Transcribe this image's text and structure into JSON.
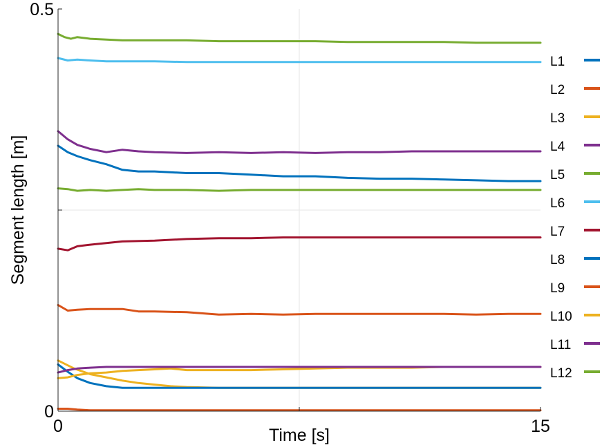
{
  "chart_data": {
    "type": "line",
    "xlabel": "Time [s]",
    "ylabel": "Segment length [m]",
    "xlim": [
      0,
      15
    ],
    "ylim": [
      0,
      0.5
    ],
    "xticks": [
      {
        "value": 0,
        "label": "0"
      },
      {
        "value": 7.5,
        "label": ""
      },
      {
        "value": 15,
        "label": "15"
      }
    ],
    "yticks": [
      {
        "value": 0,
        "label": "0"
      },
      {
        "value": 0.25,
        "label": ""
      },
      {
        "value": 0.5,
        "label": "0.5"
      }
    ],
    "grid": true,
    "legend_position": "right",
    "series": [
      {
        "name": "L1",
        "color": "#0072BD",
        "x": [
          0,
          0.3,
          0.6,
          1,
          1.5,
          2,
          2.5,
          3,
          4,
          5,
          6,
          7,
          8,
          9,
          10,
          11,
          12,
          13,
          14,
          15
        ],
        "y": [
          0.33,
          0.322,
          0.317,
          0.312,
          0.307,
          0.3,
          0.298,
          0.298,
          0.296,
          0.296,
          0.294,
          0.292,
          0.292,
          0.29,
          0.289,
          0.289,
          0.288,
          0.287,
          0.286,
          0.286
        ]
      },
      {
        "name": "L2",
        "color": "#D95319",
        "x": [
          0,
          0.3,
          0.6,
          1,
          2,
          4,
          6,
          8,
          10,
          12,
          15
        ],
        "y": [
          0.003,
          0.003,
          0.002,
          0.001,
          0.001,
          0.001,
          0.001,
          0.001,
          0.001,
          0.001,
          0.001
        ]
      },
      {
        "name": "L3",
        "color": "#EDB120",
        "x": [
          0,
          0.5,
          1,
          1.5,
          2,
          2.5,
          3,
          3.5,
          4,
          5,
          6,
          8,
          10,
          12,
          15
        ],
        "y": [
          0.063,
          0.053,
          0.046,
          0.042,
          0.038,
          0.035,
          0.033,
          0.031,
          0.03,
          0.029,
          0.029,
          0.029,
          0.029,
          0.029,
          0.029
        ]
      },
      {
        "name": "L4",
        "color": "#7E2F8E",
        "x": [
          0,
          0.3,
          0.6,
          1,
          1.5,
          2,
          2.5,
          3,
          4,
          5,
          6,
          7,
          8,
          9,
          10,
          11,
          12,
          13,
          14,
          15
        ],
        "y": [
          0.348,
          0.338,
          0.331,
          0.326,
          0.322,
          0.325,
          0.323,
          0.322,
          0.321,
          0.322,
          0.321,
          0.322,
          0.321,
          0.322,
          0.322,
          0.323,
          0.323,
          0.323,
          0.323,
          0.323
        ]
      },
      {
        "name": "L5",
        "color": "#77AC30",
        "x": [
          0,
          0.3,
          0.6,
          1,
          1.5,
          2,
          2.5,
          3,
          4,
          5,
          6,
          8,
          10,
          12,
          15
        ],
        "y": [
          0.277,
          0.276,
          0.274,
          0.275,
          0.274,
          0.275,
          0.276,
          0.275,
          0.275,
          0.274,
          0.275,
          0.275,
          0.275,
          0.275,
          0.275
        ]
      },
      {
        "name": "L6",
        "color": "#4DBEEE",
        "x": [
          0,
          0.3,
          0.6,
          1,
          1.5,
          2,
          3,
          4,
          5,
          6,
          8,
          10,
          12,
          15
        ],
        "y": [
          0.439,
          0.436,
          0.437,
          0.436,
          0.435,
          0.435,
          0.435,
          0.434,
          0.434,
          0.434,
          0.434,
          0.434,
          0.434,
          0.434
        ]
      },
      {
        "name": "L7",
        "color": "#A2142F",
        "x": [
          0,
          0.3,
          0.6,
          1,
          1.5,
          2,
          3,
          4,
          5,
          6,
          7,
          8,
          9,
          10,
          11,
          12,
          13,
          14,
          15
        ],
        "y": [
          0.202,
          0.2,
          0.205,
          0.207,
          0.209,
          0.211,
          0.212,
          0.214,
          0.215,
          0.215,
          0.216,
          0.216,
          0.216,
          0.216,
          0.216,
          0.216,
          0.216,
          0.216,
          0.216
        ]
      },
      {
        "name": "L8",
        "color": "#0072BD",
        "x": [
          0,
          0.3,
          0.6,
          1,
          1.5,
          2,
          3,
          4,
          5,
          6,
          8,
          10,
          12,
          15
        ],
        "y": [
          0.058,
          0.049,
          0.041,
          0.035,
          0.031,
          0.029,
          0.029,
          0.029,
          0.029,
          0.029,
          0.029,
          0.029,
          0.029,
          0.029
        ]
      },
      {
        "name": "L9",
        "color": "#D95319",
        "x": [
          0,
          0.3,
          0.6,
          1,
          1.5,
          2,
          2.5,
          3,
          4,
          5,
          6,
          7,
          8,
          9,
          10,
          11,
          12,
          13,
          14,
          15
        ],
        "y": [
          0.132,
          0.125,
          0.126,
          0.127,
          0.127,
          0.127,
          0.124,
          0.124,
          0.123,
          0.12,
          0.121,
          0.12,
          0.121,
          0.121,
          0.121,
          0.121,
          0.121,
          0.12,
          0.121,
          0.121
        ]
      },
      {
        "name": "L10",
        "color": "#EDB120",
        "x": [
          0,
          0.3,
          0.6,
          1,
          1.5,
          2,
          2.5,
          3,
          3.5,
          4,
          5,
          6,
          7,
          8,
          9,
          10,
          11,
          12,
          13,
          14,
          15
        ],
        "y": [
          0.041,
          0.042,
          0.045,
          0.047,
          0.048,
          0.05,
          0.051,
          0.052,
          0.053,
          0.051,
          0.051,
          0.051,
          0.052,
          0.053,
          0.054,
          0.054,
          0.054,
          0.055,
          0.055,
          0.055,
          0.055
        ]
      },
      {
        "name": "L11",
        "color": "#7E2F8E",
        "x": [
          0,
          0.3,
          0.6,
          1,
          1.5,
          2,
          3,
          4,
          6,
          8,
          10,
          12,
          15
        ],
        "y": [
          0.048,
          0.051,
          0.053,
          0.054,
          0.055,
          0.055,
          0.055,
          0.055,
          0.055,
          0.055,
          0.055,
          0.055,
          0.055
        ]
      },
      {
        "name": "L12",
        "color": "#77AC30",
        "x": [
          0,
          0.2,
          0.4,
          0.6,
          1,
          1.5,
          2,
          2.5,
          3,
          4,
          5,
          6,
          7,
          8,
          9,
          10,
          11,
          12,
          13,
          14,
          15
        ],
        "y": [
          0.469,
          0.465,
          0.463,
          0.465,
          0.463,
          0.462,
          0.461,
          0.461,
          0.461,
          0.461,
          0.46,
          0.46,
          0.46,
          0.46,
          0.459,
          0.459,
          0.459,
          0.459,
          0.458,
          0.458,
          0.458
        ]
      }
    ]
  }
}
